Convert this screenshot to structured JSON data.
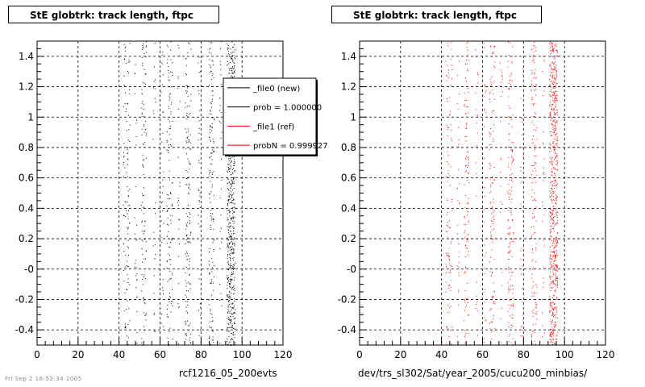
{
  "page": {
    "footer_stamp": "Fri Sep  2 16:52:34 2005"
  },
  "chart_data": [
    {
      "type": "scatter",
      "title": "StE globtrk: track length, ftpc",
      "xlabel": "rcf1216_05_200evts",
      "ylabel": "",
      "xlim": [
        0,
        120
      ],
      "ylim": [
        -0.5,
        1.5
      ],
      "xticks": [
        0,
        20,
        40,
        60,
        80,
        100,
        120
      ],
      "xtick_labels": [
        "0",
        "20",
        "40",
        "60",
        "80",
        "100",
        "120"
      ],
      "yticks": [
        -0.4,
        -0.2,
        0,
        0.2,
        0.4,
        0.6,
        0.8,
        1,
        1.2,
        1.4
      ],
      "ytick_labels": [
        "-0.4",
        "-0.2",
        "-0",
        "0.2",
        "0.4",
        "0.6",
        "0.8",
        "1",
        "1.2",
        "1.4"
      ],
      "grid": true,
      "grid_style": "dashed",
      "marker_color": "#000000",
      "point_columns": [
        {
          "x": 43.5,
          "half_width": 1.6,
          "density": 110
        },
        {
          "x": 48.0,
          "half_width": 0.6,
          "density": 30
        },
        {
          "x": 52.0,
          "half_width": 1.2,
          "density": 110
        },
        {
          "x": 57.0,
          "half_width": 0.6,
          "density": 25
        },
        {
          "x": 61.0,
          "half_width": 0.6,
          "density": 30
        },
        {
          "x": 64.5,
          "half_width": 1.4,
          "density": 120
        },
        {
          "x": 69.0,
          "half_width": 0.6,
          "density": 25
        },
        {
          "x": 73.5,
          "half_width": 1.4,
          "density": 150
        },
        {
          "x": 79.0,
          "half_width": 0.6,
          "density": 30
        },
        {
          "x": 85.0,
          "half_width": 1.3,
          "density": 150
        },
        {
          "x": 89.5,
          "half_width": 0.6,
          "density": 30
        },
        {
          "x": 94.5,
          "half_width": 2.0,
          "density": 650
        }
      ],
      "legend": {
        "placement": "top-right",
        "entries": [
          {
            "label": "_file0 (new)",
            "color": "#000000"
          },
          {
            "label": "prob = 1.000000",
            "color": "#000000"
          },
          {
            "label": "_file1 (ref)",
            "color": "#ff0000"
          },
          {
            "label": "probN = 0.999927",
            "color": "#ff0000"
          }
        ]
      }
    },
    {
      "type": "scatter",
      "title": "StE globtrk: track length, ftpc",
      "xlabel": "dev/trs_sl302/Sat/year_2005/cucu200_minbias/",
      "ylabel": "",
      "xlim": [
        0,
        120
      ],
      "ylim": [
        -0.5,
        1.5
      ],
      "xticks": [
        0,
        20,
        40,
        60,
        80,
        100,
        120
      ],
      "xtick_labels": [
        "0",
        "20",
        "40",
        "60",
        "80",
        "100",
        "120"
      ],
      "yticks": [
        -0.4,
        -0.2,
        0,
        0.2,
        0.4,
        0.6,
        0.8,
        1,
        1.2,
        1.4
      ],
      "ytick_labels": [
        "-0.4",
        "-0.2",
        "-0",
        "0.2",
        "0.4",
        "0.6",
        "0.8",
        "1",
        "1.2",
        "1.4"
      ],
      "grid": true,
      "grid_style": "dashed",
      "marker_color": "#ff0000",
      "point_columns": [
        {
          "x": 43.5,
          "half_width": 1.6,
          "density": 110
        },
        {
          "x": 48.0,
          "half_width": 0.6,
          "density": 30
        },
        {
          "x": 52.0,
          "half_width": 1.2,
          "density": 110
        },
        {
          "x": 57.0,
          "half_width": 0.6,
          "density": 25
        },
        {
          "x": 61.0,
          "half_width": 0.6,
          "density": 30
        },
        {
          "x": 64.5,
          "half_width": 1.4,
          "density": 120
        },
        {
          "x": 69.0,
          "half_width": 0.6,
          "density": 25
        },
        {
          "x": 73.5,
          "half_width": 1.4,
          "density": 150
        },
        {
          "x": 79.0,
          "half_width": 0.6,
          "density": 30
        },
        {
          "x": 85.0,
          "half_width": 1.3,
          "density": 150
        },
        {
          "x": 89.5,
          "half_width": 0.6,
          "density": 30
        },
        {
          "x": 94.5,
          "half_width": 2.0,
          "density": 650
        }
      ]
    }
  ]
}
